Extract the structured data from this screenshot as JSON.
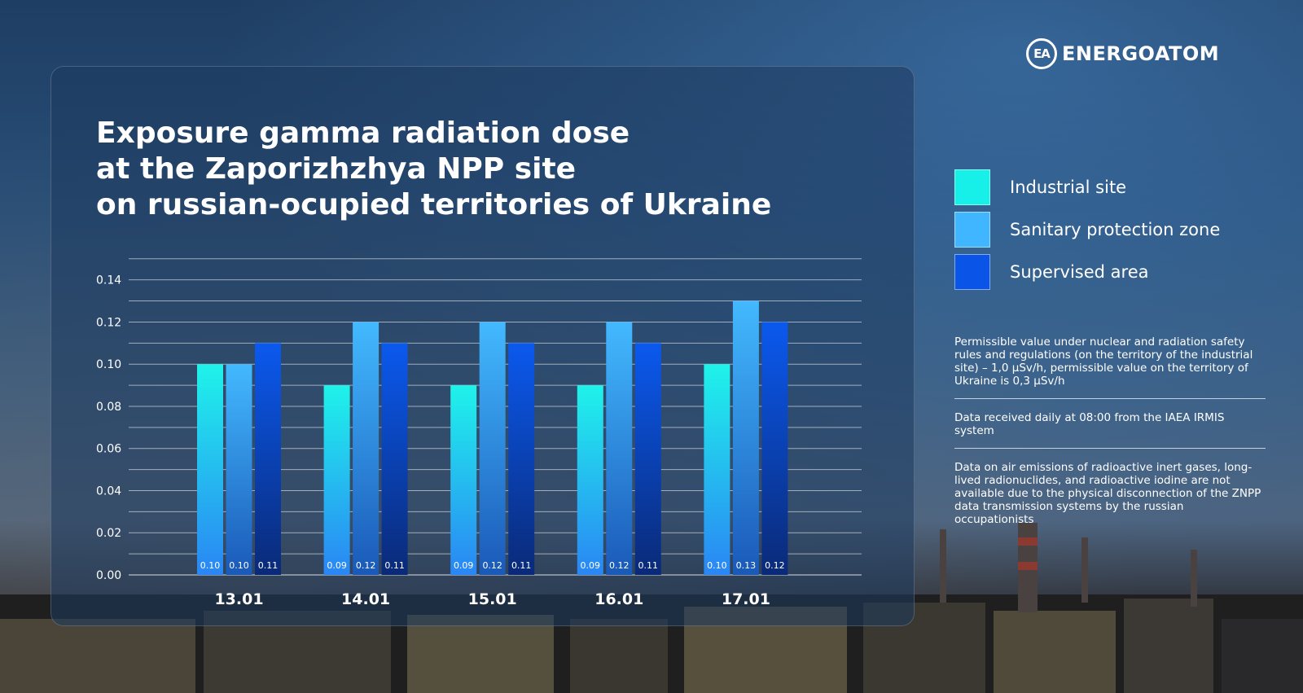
{
  "brand": {
    "name": "ENERGOATOM",
    "logo_glyph": "EA",
    "logo_icon": "energoatom-logo-icon"
  },
  "title_lines": [
    "Exposure gamma radiation dose",
    "at the Zaporizhzhya NPP site",
    "on russian-ocupied territories of Ukraine"
  ],
  "chart_data": {
    "type": "bar",
    "title": "Exposure gamma radiation dose at the Zaporizhzhya NPP site on russian-ocupied territories of Ukraine",
    "xlabel": "",
    "ylabel": "",
    "categories": [
      "13.01",
      "14.01",
      "15.01",
      "16.01",
      "17.01"
    ],
    "series": [
      {
        "name": "Industrial site",
        "values": [
          0.1,
          0.09,
          0.09,
          0.09,
          0.1
        ],
        "color": "#16f0e8"
      },
      {
        "name": "Sanitary protection zone",
        "values": [
          0.1,
          0.12,
          0.12,
          0.12,
          0.13
        ],
        "color": "#3fb6ff"
      },
      {
        "name": "Supervised area",
        "values": [
          0.11,
          0.11,
          0.11,
          0.11,
          0.12
        ],
        "color": "#0a55e8"
      }
    ],
    "y_ticks": [
      "0.00",
      "0.02",
      "0.04",
      "0.06",
      "0.08",
      "0.10",
      "0.12",
      "0.14"
    ],
    "ylim": [
      0,
      0.15
    ],
    "grid": true,
    "data_labels": true,
    "legend_position": "right"
  },
  "notes": [
    "Permissible value under nuclear and radiation safety rules and regulations (on the territory of the industrial site) – 1,0 μSv/h, permissible value on the territory of Ukraine is 0,3 μSv/h",
    "Data received daily at 08:00 from the IAEA IRMIS system",
    "Data on air emissions of radioactive inert gases, long-lived radionuclides, and radioactive iodine are not available due to the physical disconnection of the ZNPP data transmission systems by the russian occupationists"
  ]
}
